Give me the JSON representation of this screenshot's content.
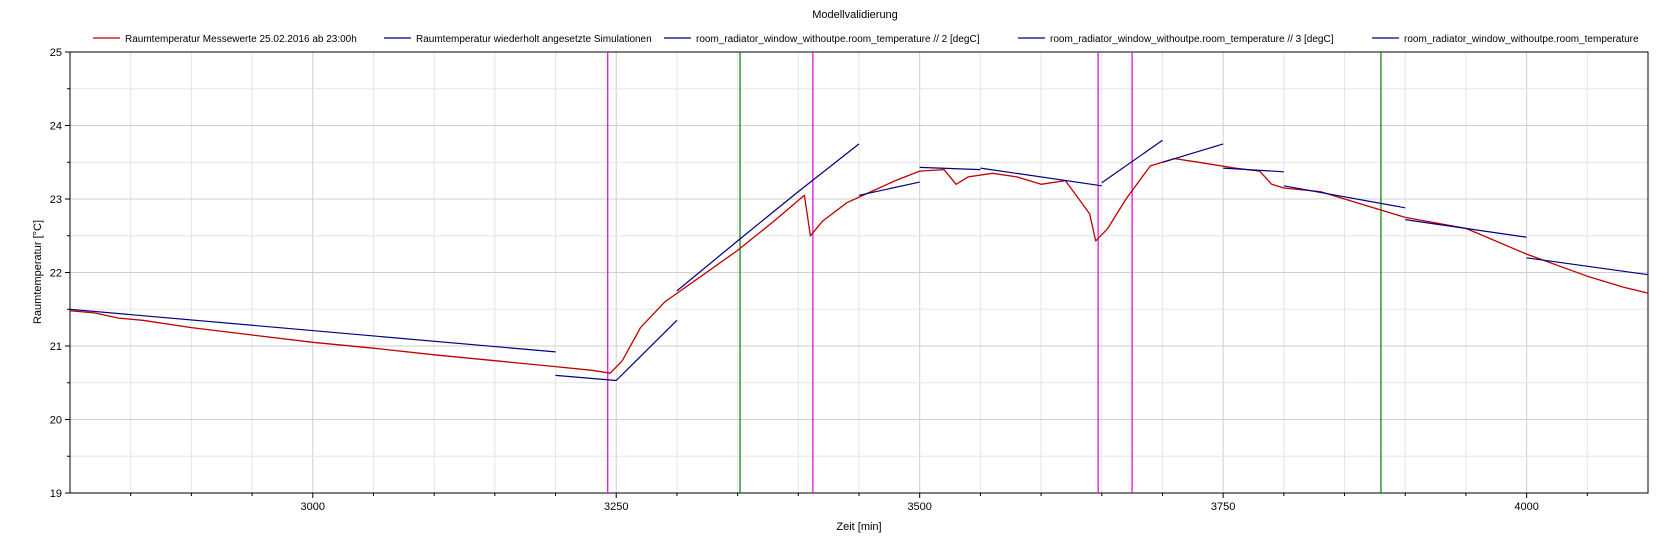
{
  "chart_data": {
    "type": "line",
    "title": "Modellvalidierung",
    "xlabel": "Zeit [min]",
    "ylabel": "Raumtemperatur [°C]",
    "xlim": [
      2800,
      4100
    ],
    "ylim": [
      19,
      25
    ],
    "x_ticks": [
      3000,
      3250,
      3500,
      3750,
      4000
    ],
    "y_ticks": [
      19,
      20,
      21,
      22,
      23,
      24,
      25
    ],
    "grid": true,
    "legend_position": "top",
    "legend": [
      {
        "name": "Raumtemperatur Messewerte 25.02.2016 ab 23:00h",
        "color": "#c00000"
      },
      {
        "name": "Raumtemperatur wiederholt angesetzte Simulationen",
        "color": "#000080"
      },
      {
        "name": "room_radiator_window_withoutpe.room_temperature // 2 [degC]",
        "color": "#000080"
      },
      {
        "name": "room_radiator_window_withoutpe.room_temperature // 3 [degC]",
        "color": "#000080"
      },
      {
        "name": "room_radiator_window_withoutpe.room_temperature",
        "color": "#000080"
      }
    ],
    "series": [
      {
        "color": "#c00000",
        "x": [
          2800,
          2820,
          2840,
          2860,
          2900,
          2950,
          3000,
          3050,
          3100,
          3150,
          3200,
          3230,
          3245,
          3255,
          3270,
          3290,
          3320,
          3350,
          3380,
          3405,
          3410,
          3420,
          3440,
          3460,
          3480,
          3500,
          3520,
          3530,
          3540,
          3560,
          3580,
          3600,
          3620,
          3640,
          3645,
          3655,
          3670,
          3690,
          3710,
          3730,
          3760,
          3780,
          3790,
          3800,
          3830,
          3870,
          3900,
          3950,
          4000,
          4050,
          4080,
          4100
        ],
        "y": [
          21.48,
          21.45,
          21.38,
          21.35,
          21.25,
          21.15,
          21.05,
          20.97,
          20.88,
          20.8,
          20.72,
          20.67,
          20.63,
          20.8,
          21.25,
          21.6,
          21.95,
          22.3,
          22.7,
          23.05,
          22.5,
          22.7,
          22.95,
          23.1,
          23.25,
          23.38,
          23.4,
          23.2,
          23.3,
          23.35,
          23.3,
          23.2,
          23.25,
          22.8,
          22.43,
          22.6,
          23.0,
          23.45,
          23.55,
          23.5,
          23.42,
          23.38,
          23.2,
          23.15,
          23.1,
          22.9,
          22.75,
          22.6,
          22.25,
          21.95,
          21.8,
          21.72
        ]
      },
      {
        "color": "#000080",
        "x": [
          2800,
          3200
        ],
        "y": [
          21.5,
          20.92
        ]
      },
      {
        "color": "#000080",
        "x": [
          3200,
          3250,
          3300
        ],
        "y": [
          20.6,
          20.53,
          21.35
        ]
      },
      {
        "color": "#000080",
        "x": [
          3300,
          3350,
          3400,
          3450
        ],
        "y": [
          21.75,
          22.43,
          23.1,
          23.75
        ]
      },
      {
        "color": "#000080",
        "x": [
          3450,
          3500
        ],
        "y": [
          23.05,
          23.23
        ]
      },
      {
        "color": "#000080",
        "x": [
          3500,
          3550
        ],
        "y": [
          23.43,
          23.4
        ]
      },
      {
        "color": "#000080",
        "x": [
          3550,
          3650
        ],
        "y": [
          23.42,
          23.18
        ]
      },
      {
        "color": "#000080",
        "x": [
          3650,
          3700
        ],
        "y": [
          23.22,
          23.8
        ]
      },
      {
        "color": "#000080",
        "x": [
          3700,
          3750
        ],
        "y": [
          23.5,
          23.75
        ]
      },
      {
        "color": "#000080",
        "x": [
          3750,
          3800
        ],
        "y": [
          23.42,
          23.37
        ]
      },
      {
        "color": "#000080",
        "x": [
          3800,
          3900
        ],
        "y": [
          23.18,
          22.88
        ]
      },
      {
        "color": "#000080",
        "x": [
          3900,
          4000
        ],
        "y": [
          22.72,
          22.48
        ]
      },
      {
        "color": "#000080",
        "x": [
          4000,
          4100
        ],
        "y": [
          22.2,
          21.97
        ]
      }
    ],
    "vertical_markers": [
      {
        "x": 3243,
        "color": "#e000e0"
      },
      {
        "x": 3352,
        "color": "#008000"
      },
      {
        "x": 3412,
        "color": "#e000e0"
      },
      {
        "x": 3647,
        "color": "#e000e0"
      },
      {
        "x": 3675,
        "color": "#e000e0"
      },
      {
        "x": 3880,
        "color": "#008000"
      }
    ]
  }
}
